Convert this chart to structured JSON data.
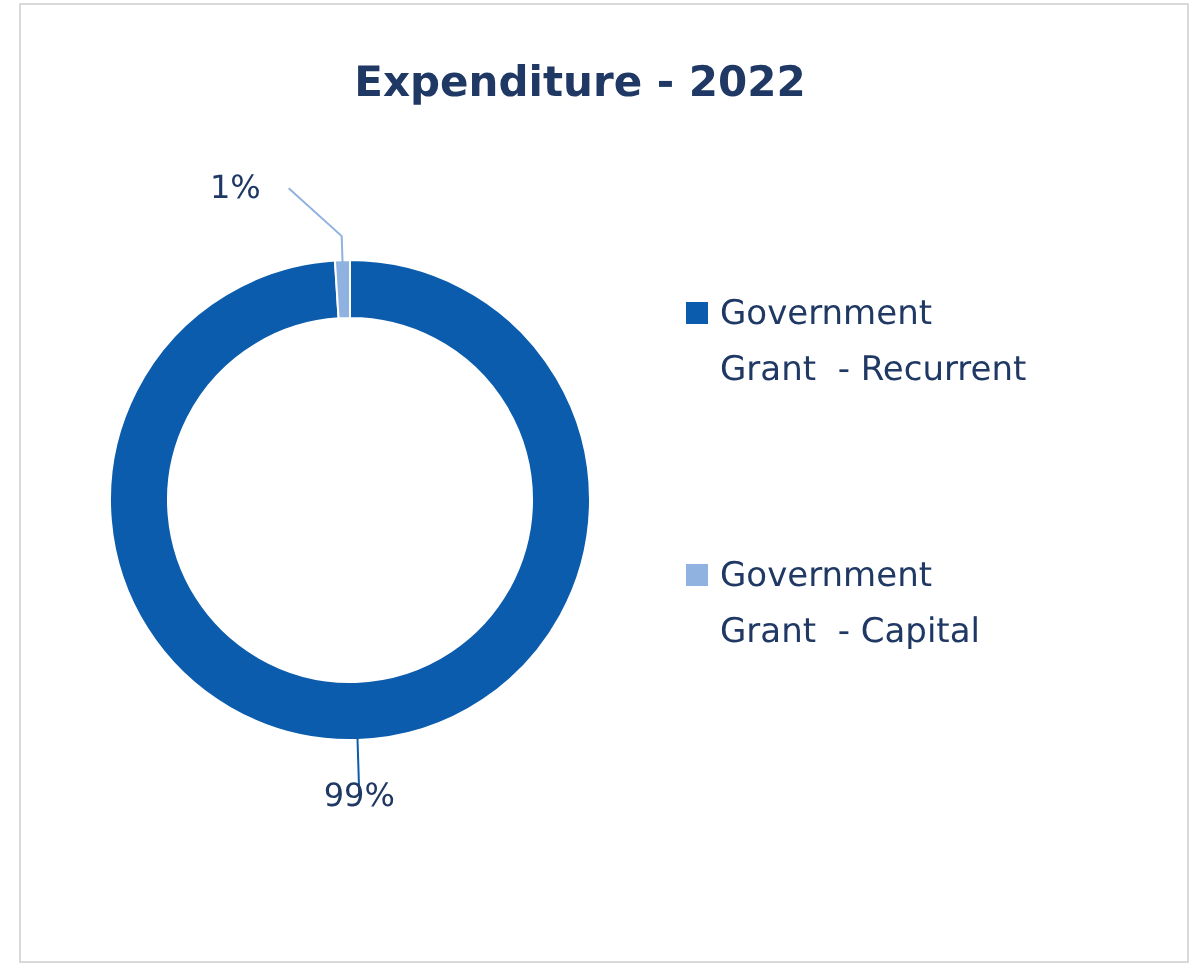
{
  "chart_data": {
    "type": "donut",
    "title": "Expenditure - 2022",
    "categories": [
      "Government Grant  - Recurrent",
      "Government Grant  - Capital"
    ],
    "values": [
      99,
      1
    ],
    "colors": [
      "#0b5cad",
      "#8fb2e0"
    ],
    "value_labels": [
      "99%",
      "1%"
    ],
    "legend": "right"
  }
}
